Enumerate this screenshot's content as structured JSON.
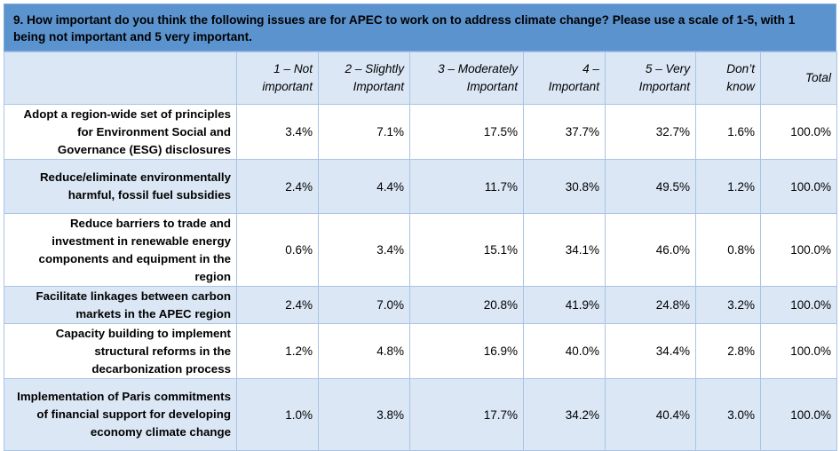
{
  "question": "9.  How important do you think the following issues are for APEC to work on to address climate change? Please use a scale of 1-5, with 1 being not important and 5 very important.",
  "columns": [
    "1 – Not important",
    "2 – Slightly Important",
    "3 – Moderately Important",
    "4 – Important",
    "5 – Very Important",
    "Don’t know",
    "Total"
  ],
  "rows": [
    {
      "label": "Adopt a region-wide set of principles for Environment Social and Governance (ESG) disclosures",
      "values": [
        "3.4%",
        "7.1%",
        "17.5%",
        "37.7%",
        "32.7%",
        "1.6%",
        "100.0%"
      ]
    },
    {
      "label": "Reduce/eliminate environmentally harmful, fossil fuel subsidies",
      "values": [
        "2.4%",
        "4.4%",
        "11.7%",
        "30.8%",
        "49.5%",
        "1.2%",
        "100.0%"
      ]
    },
    {
      "label": "Reduce barriers to trade and investment in renewable energy components and equipment in the region",
      "values": [
        "0.6%",
        "3.4%",
        "15.1%",
        "34.1%",
        "46.0%",
        "0.8%",
        "100.0%"
      ]
    },
    {
      "label": "Facilitate linkages between carbon markets in the APEC region",
      "values": [
        "2.4%",
        "7.0%",
        "20.8%",
        "41.9%",
        "24.8%",
        "3.2%",
        "100.0%"
      ]
    },
    {
      "label": "Capacity building to implement structural reforms in the decarbonization process",
      "values": [
        "1.2%",
        "4.8%",
        "16.9%",
        "40.0%",
        "34.4%",
        "2.8%",
        "100.0%"
      ]
    },
    {
      "label": "Implementation of Paris commitments of financial support for developing economy climate change",
      "values": [
        "1.0%",
        "3.8%",
        "17.7%",
        "34.2%",
        "40.4%",
        "3.0%",
        "100.0%"
      ]
    }
  ]
}
